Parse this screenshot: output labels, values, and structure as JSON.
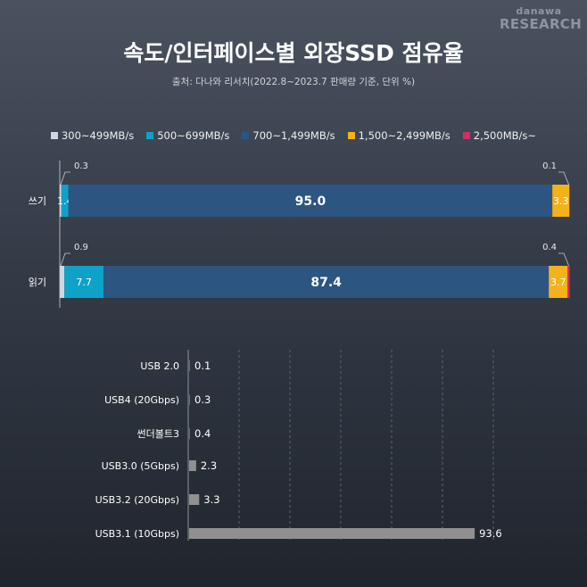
{
  "logo": {
    "line1": "danawa",
    "line2": "RESEARCH"
  },
  "title": "속도/인터페이스별 외장SSD 점유율",
  "subtitle": "출처: 다나와 리서치(2022.8~2023.7 판매량 기준, 단위 %)",
  "chart_data": [
    {
      "type": "bar",
      "orientation": "horizontal",
      "stacked": true,
      "categories": [
        "쓰기",
        "읽기"
      ],
      "series": [
        {
          "name": "300~499MB/s",
          "color": "#cfd8e0",
          "values": [
            0.3,
            0.9
          ]
        },
        {
          "name": "500~699MB/s",
          "color": "#0fa2c8",
          "values": [
            1.4,
            7.7
          ]
        },
        {
          "name": "700~1,499MB/s",
          "color": "#2c5582",
          "values": [
            95.0,
            87.4
          ]
        },
        {
          "name": "1,500~2,499MB/s",
          "color": "#f4b21a",
          "values": [
            3.3,
            3.7
          ]
        },
        {
          "name": "2,500MB/s~",
          "color": "#d82b62",
          "values": [
            0.1,
            0.4
          ]
        }
      ],
      "xlim": [
        0,
        100
      ],
      "legend": "top-center"
    },
    {
      "type": "bar",
      "orientation": "horizontal",
      "categories": [
        "USB 2.0",
        "USB4 (20Gbps)",
        "썬더볼트3",
        "USB3.0 (5Gbps)",
        "USB3.2 (20Gbps)",
        "USB3.1 (10Gbps)"
      ],
      "values": [
        0.1,
        0.3,
        0.4,
        2.3,
        3.3,
        93.6
      ],
      "color": "#909090",
      "xlim": [
        0,
        100
      ],
      "grid": "vertical dashed"
    }
  ]
}
